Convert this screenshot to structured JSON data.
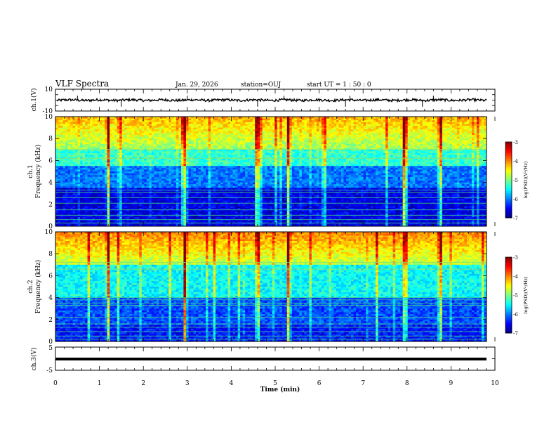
{
  "header": {
    "title": "VLF Spectra",
    "date": "Jan. 29, 2026",
    "station": "station=OUJ",
    "start_ut": "start UT =  1 : 50 : 0"
  },
  "chart_data": {
    "type": "heatmap",
    "title": "VLF Spectra",
    "xlabel": "Time (min)",
    "x_ticks": [
      "0",
      "1",
      "2",
      "3",
      "4",
      "5",
      "6",
      "7",
      "8",
      "9",
      "10"
    ],
    "xlim": [
      0,
      10
    ],
    "panels": [
      {
        "id": "ch1-waveform",
        "type": "line",
        "ylabel": "ch.1(V)",
        "ylim": [
          -10,
          10
        ],
        "y_ticks": [
          "10",
          "-10"
        ],
        "baseline": 0,
        "spikes_min": [
          0.5,
          1.5,
          3.0,
          4.6,
          5.2,
          6.6,
          6.7,
          8.35,
          8.6
        ]
      },
      {
        "id": "ch1-spectrogram",
        "type": "heatmap",
        "ylabel": "ch.1 Frequency (kHz)",
        "ylim": [
          0,
          10
        ],
        "y_ticks": [
          "0",
          "2",
          "4",
          "6",
          "8",
          "10"
        ],
        "colorbar": {
          "label": "log(PSD)(V²/Hz)",
          "range": [
            -7,
            -3
          ],
          "ticks": [
            "-3",
            "-4",
            "-5",
            "-6",
            "-7"
          ]
        },
        "strong_events_min": [
          1.2,
          2.95,
          4.6,
          5.3,
          7.95,
          8.75
        ]
      },
      {
        "id": "ch2-spectrogram",
        "type": "heatmap",
        "ylabel": "ch.2 Frequency (kHz)",
        "ylim": [
          0,
          10
        ],
        "y_ticks": [
          "0",
          "2",
          "4",
          "6",
          "8",
          "10"
        ],
        "colorbar": {
          "label": "log(PSD)(V²/Hz)",
          "range": [
            -7,
            -3
          ],
          "ticks": [
            "-3",
            "-4",
            "-5",
            "-6",
            "-7"
          ]
        },
        "strong_events_min": [
          1.2,
          2.95,
          4.6,
          5.3,
          7.95,
          8.75
        ]
      },
      {
        "id": "ch3-waveform",
        "type": "line",
        "ylabel": "ch.3(V)",
        "ylim": [
          -5,
          5
        ],
        "y_ticks": [
          "5",
          "-5"
        ],
        "baseline": -1
      }
    ]
  }
}
